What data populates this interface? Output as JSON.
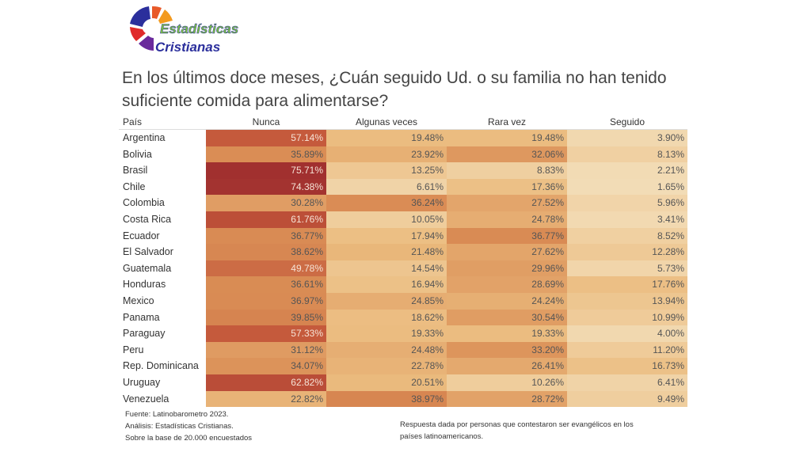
{
  "logo": {
    "line1": "Estadísticas",
    "line2": "Cristianas"
  },
  "title": "En los últimos doce meses, ¿Cuán seguido Ud. o su familia no han tenido suficiente comida para alimentarse?",
  "chart_data": {
    "type": "heatmap",
    "row_header": "País",
    "columns": [
      "Nunca",
      "Algunas veces",
      "Rara vez",
      "Seguido"
    ],
    "rows": [
      "Argentina",
      "Bolivia",
      "Brasil",
      "Chile",
      "Colombia",
      "Costa Rica",
      "Ecuador",
      "El Salvador",
      "Guatemala",
      "Honduras",
      "Mexico",
      "Panama",
      "Paraguay",
      "Peru",
      "Rep. Dominicana",
      "Uruguay",
      "Venezuela"
    ],
    "values": [
      [
        57.14,
        19.48,
        19.48,
        3.9
      ],
      [
        35.89,
        23.92,
        32.06,
        8.13
      ],
      [
        75.71,
        13.25,
        8.83,
        2.21
      ],
      [
        74.38,
        6.61,
        17.36,
        1.65
      ],
      [
        30.28,
        36.24,
        27.52,
        5.96
      ],
      [
        61.76,
        10.05,
        24.78,
        3.41
      ],
      [
        36.77,
        17.94,
        36.77,
        8.52
      ],
      [
        38.62,
        21.48,
        27.62,
        12.28
      ],
      [
        49.78,
        14.54,
        29.96,
        5.73
      ],
      [
        36.61,
        16.94,
        28.69,
        17.76
      ],
      [
        36.97,
        24.85,
        24.24,
        13.94
      ],
      [
        39.85,
        18.62,
        30.54,
        10.99
      ],
      [
        57.33,
        19.33,
        19.33,
        4.0
      ],
      [
        31.12,
        24.48,
        33.2,
        11.2
      ],
      [
        34.07,
        22.78,
        26.41,
        16.73
      ],
      [
        62.82,
        20.51,
        10.26,
        6.41
      ],
      [
        22.82,
        38.97,
        28.72,
        9.49
      ]
    ],
    "unit": "%",
    "color_scale": [
      "#f3dfbb",
      "#ebbb7e",
      "#da8d55",
      "#c4583b",
      "#a02f2f"
    ]
  },
  "footer": {
    "left": [
      "Fuente: Latinobarometro 2023.",
      "Análisis: Estadísticas Cristianas.",
      "Sobre la base de 20.000 encuestados"
    ],
    "right": [
      "Respuesta dada por personas que contestaron ser evangélicos en los",
      "países latinoamericanos."
    ]
  }
}
